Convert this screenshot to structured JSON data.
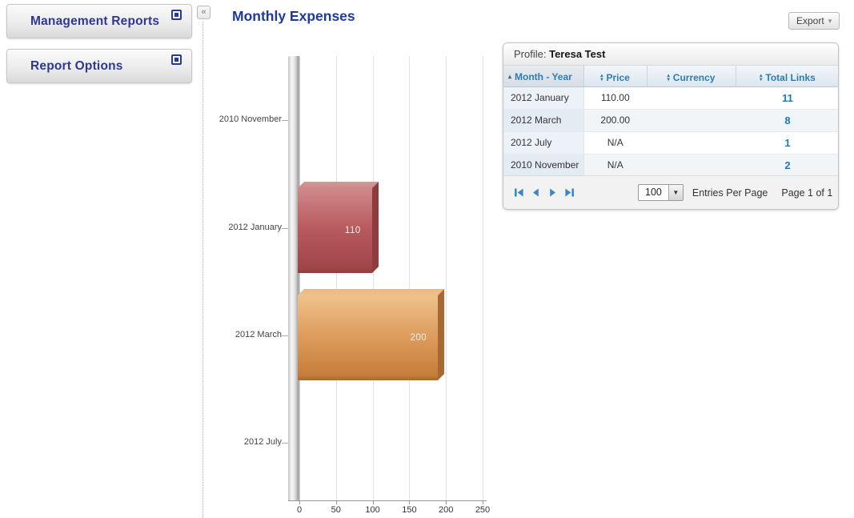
{
  "sidebar": {
    "panels": [
      {
        "title": "Management Reports"
      },
      {
        "title": "Report Options"
      }
    ],
    "collapse_label": "«"
  },
  "main": {
    "title": "Monthly Expenses",
    "export": {
      "label": "Export",
      "caret": "▾"
    }
  },
  "chart_data": {
    "type": "bar",
    "orientation": "horizontal",
    "title": "Monthly Expenses",
    "categories": [
      "2010 November",
      "2012 January",
      "2012 March",
      "2012 July"
    ],
    "values": [
      null,
      110,
      200,
      null
    ],
    "value_labels": [
      null,
      "110",
      "200",
      null
    ],
    "xlabel": "",
    "ylabel": "",
    "xticks": [
      0,
      50,
      100,
      150,
      200,
      250
    ],
    "xlim": [
      0,
      250
    ],
    "grid": "vertical",
    "legend": "none",
    "bar_styles": [
      null,
      {
        "front_top": "#cf8889",
        "front_mid": "#b85a5d",
        "front_bottom": "#a04649",
        "top_face": "#d69795",
        "side_face": "#8e3c40"
      },
      {
        "front_top": "#efc18c",
        "front_mid": "#dd9c5e",
        "front_bottom": "#c67d3a",
        "top_face": "#ecb77e",
        "side_face": "#a86831"
      },
      null
    ]
  },
  "table": {
    "title_prefix": "Profile:",
    "profile_name": "Teresa Test",
    "columns": [
      {
        "key": "month-year",
        "label": "Month - Year",
        "sort": "asc",
        "align": "left"
      },
      {
        "key": "price",
        "label": "Price",
        "sort": "both",
        "align": "center"
      },
      {
        "key": "currency",
        "label": "Currency",
        "sort": "both",
        "align": "center"
      },
      {
        "key": "total-links",
        "label": "Total Links",
        "sort": "both",
        "align": "center"
      }
    ],
    "rows": [
      [
        "2012 January",
        "110.00",
        "",
        "11"
      ],
      [
        "2012 March",
        "200.00",
        "",
        "8"
      ],
      [
        "2012 July",
        "N/A",
        "",
        "1"
      ],
      [
        "2010 November",
        "N/A",
        "",
        "2"
      ]
    ],
    "pager": {
      "buttons": [
        "first-page",
        "previous-page",
        "next-page",
        "last-page"
      ],
      "per_page": "100",
      "caret": "▼",
      "entries_label": "Entries Per Page",
      "page_label": "Page 1 of 1"
    }
  },
  "colors": {
    "title_blue": "#1e3a9e",
    "sidebar_blue": "#2e3794",
    "table_header_blue": "#2f7cb5",
    "link_blue": "#1a7ab8",
    "pager_blue": "#3e86c8",
    "bar_red": "#b85a5d",
    "bar_orange": "#dd9c5e"
  }
}
